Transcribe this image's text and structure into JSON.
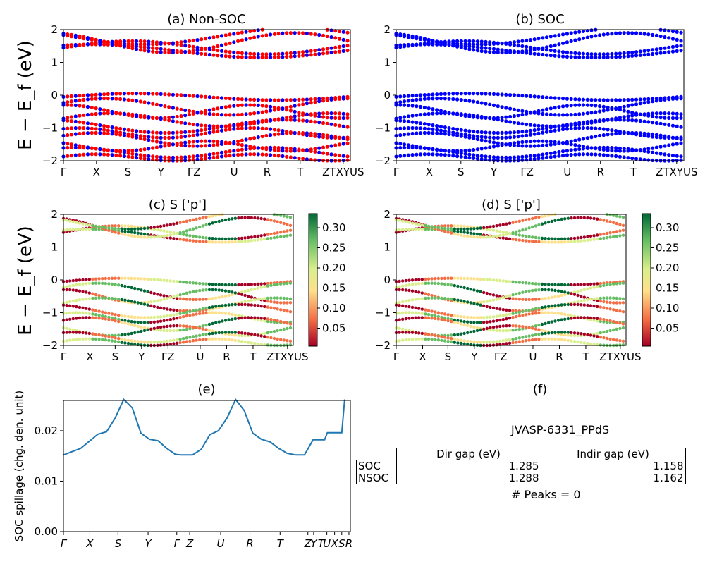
{
  "panels": {
    "a": {
      "title": "(a) Non-SOC"
    },
    "b": {
      "title": "(b) SOC"
    },
    "c": {
      "title": "(c)  S ['p']"
    },
    "d": {
      "title": "(d) S ['p']"
    },
    "e": {
      "title": "(e)"
    },
    "f": {
      "title": "(f)"
    }
  },
  "band_axes": {
    "ylabel": "E − E_f (eV)",
    "ylim": [
      -2,
      2
    ],
    "yticks": [
      "2",
      "1",
      "0",
      "−1",
      "−2"
    ],
    "xticks": [
      "Γ",
      "X",
      "S",
      "Y",
      "ΓZ",
      "U",
      "R",
      "T",
      "ZTXYUS"
    ]
  },
  "colorbar": {
    "ticks": [
      "0.30",
      "0.25",
      "0.20",
      "0.15",
      "0.10",
      "0.05"
    ],
    "colors": [
      "#a50026",
      "#f46d43",
      "#fee08b",
      "#d9ef8b",
      "#66bd63",
      "#006837"
    ]
  },
  "colors": {
    "non_soc_primary": "#ff0000",
    "non_soc_secondary": "#0000ff",
    "soc": "#0000ff",
    "spillage": "#1f77b4"
  },
  "chart_data": [
    {
      "panel": "a",
      "type": "scatter",
      "title": "(a) Non-SOC",
      "ylabel": "E − E_f (eV)",
      "ylim": [
        -2,
        2
      ]
    },
    {
      "panel": "b",
      "type": "scatter",
      "title": "(b) SOC",
      "ylim": [
        -2,
        2
      ]
    },
    {
      "panel": "c",
      "type": "scatter",
      "title": "(c)  S ['p']",
      "ylim": [
        -2,
        2
      ],
      "colorbar_range": [
        0.0,
        0.33
      ]
    },
    {
      "panel": "d",
      "type": "scatter",
      "title": "(d) S ['p']",
      "ylim": [
        -2,
        2
      ],
      "colorbar_range": [
        0.0,
        0.33
      ]
    },
    {
      "panel": "e",
      "type": "line",
      "title": "(e)",
      "ylabel": "SOC spillage (chg. den. unit)",
      "ylim": [
        0,
        0.026
      ],
      "yticks": [
        "0.00",
        "0.01",
        "0.02"
      ],
      "xticks": [
        "Γ",
        "X",
        "S",
        "Y",
        "Γ",
        "Z",
        "U",
        "R",
        "T",
        "Z",
        "Y",
        "T",
        "U",
        "X",
        "S",
        "R"
      ],
      "x": [
        0,
        0.06,
        0.12,
        0.15,
        0.18,
        0.21,
        0.24,
        0.27,
        0.3,
        0.33,
        0.36,
        0.39,
        0.41,
        0.43,
        0.45,
        0.48,
        0.51,
        0.54,
        0.57,
        0.6,
        0.63,
        0.66,
        0.69,
        0.72,
        0.75,
        0.78,
        0.81,
        0.84,
        0.87,
        0.88,
        0.91,
        0.92,
        0.95,
        0.97,
        0.98
      ],
      "y": [
        0.0152,
        0.0165,
        0.0193,
        0.0198,
        0.0225,
        0.0262,
        0.0245,
        0.0195,
        0.0183,
        0.018,
        0.0165,
        0.0153,
        0.0152,
        0.0152,
        0.0152,
        0.0163,
        0.0192,
        0.02,
        0.0225,
        0.0262,
        0.024,
        0.0195,
        0.0183,
        0.0178,
        0.0165,
        0.0155,
        0.0152,
        0.0152,
        0.0182,
        0.0182,
        0.0182,
        0.0196,
        0.0196,
        0.0196,
        0.0262
      ]
    }
  ],
  "table": {
    "title": "JVASP-6331_PPdS",
    "headers": [
      "",
      "Dir gap (eV)",
      "Indir gap (eV)"
    ],
    "rows": [
      {
        "label": "SOC",
        "dir": "1.285",
        "indir": "1.158"
      },
      {
        "label": "NSOC",
        "dir": "1.288",
        "indir": "1.162"
      }
    ],
    "peaks": "# Peaks = 0"
  }
}
